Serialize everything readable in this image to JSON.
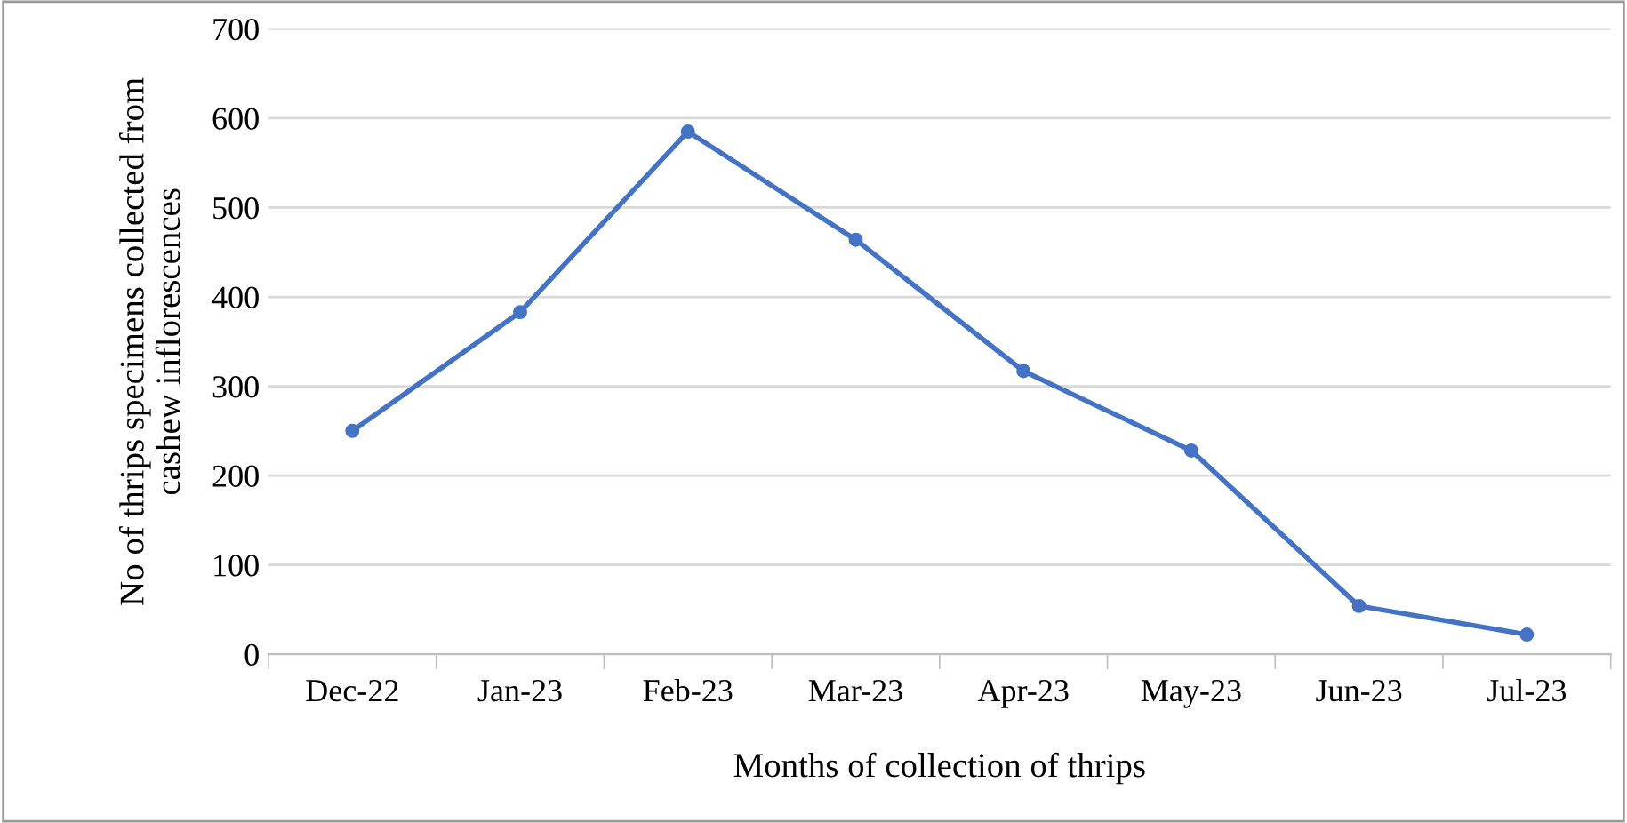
{
  "chart_data": {
    "type": "line",
    "xlabel": "Months of collection of thrips",
    "ylabel": "No of thrips specimens collected from\ncashew inflorescences",
    "categories": [
      "Dec-22",
      "Jan-23",
      "Feb-23",
      "Mar-23",
      "Apr-23",
      "May-23",
      "Jun-23",
      "Jul-23"
    ],
    "series": [
      {
        "color": "#4472c4",
        "values": [
          250,
          383,
          585,
          464,
          317,
          228,
          54,
          22
        ]
      }
    ],
    "ylim": [
      0,
      700
    ],
    "yticks": [
      0,
      100,
      200,
      300,
      400,
      500,
      600,
      700
    ],
    "grid": "y",
    "marker": "circle",
    "line_style": "solid",
    "legend": false
  }
}
